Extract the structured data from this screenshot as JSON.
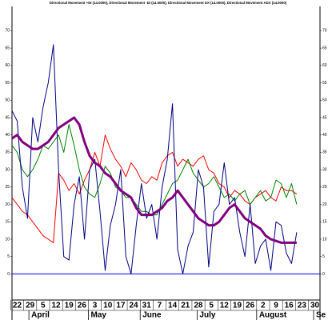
{
  "chart_data": {
    "type": "line",
    "title": "Directional Movement +DI (14.0000), Directional Movement -DI (14.0000), Directional Movement DX (14.0000), Directional Movement ADX (14.0000)",
    "x": [
      0,
      2,
      4,
      6,
      8,
      10,
      12,
      14,
      16,
      18,
      20,
      22,
      24,
      26,
      28,
      30,
      32,
      34,
      36,
      38,
      40,
      42,
      44,
      46,
      48,
      50,
      52,
      54,
      56,
      58,
      60,
      62,
      64,
      66,
      68,
      70,
      72,
      74,
      76,
      78,
      80,
      82,
      84,
      86,
      88,
      90,
      92,
      94,
      96,
      98,
      100,
      102,
      104,
      106,
      108,
      110
    ],
    "series": [
      {
        "color": "#ff0000",
        "width": 1,
        "values": [
          22,
          20,
          18,
          17,
          15,
          13,
          11,
          10,
          9,
          29,
          27,
          24,
          26,
          23,
          27,
          30,
          35,
          31,
          40,
          36,
          33,
          31,
          28,
          32,
          30,
          27,
          26,
          28,
          27,
          32,
          34,
          35,
          31,
          33,
          32,
          31,
          33,
          34,
          30,
          29,
          26,
          25,
          22,
          24,
          23,
          21,
          20,
          22,
          23,
          24,
          22,
          21,
          25,
          24,
          24,
          23
        ]
      },
      {
        "color": "#008000",
        "width": 1,
        "values": [
          37,
          35,
          30,
          28,
          30,
          33,
          37,
          36,
          38,
          40,
          35,
          43,
          37,
          30,
          25,
          23,
          22,
          26,
          31,
          29,
          25,
          24,
          22,
          22,
          20,
          18,
          18,
          17,
          17,
          20,
          23,
          26,
          27,
          30,
          33,
          29,
          27,
          25,
          26,
          28,
          25,
          22,
          23,
          21,
          23,
          24,
          20,
          22,
          24,
          21,
          22,
          27,
          26,
          22,
          26,
          20
        ]
      },
      {
        "color": "#000080",
        "width": 1,
        "values": [
          47,
          44,
          25,
          16,
          45,
          38,
          48,
          55,
          66,
          30,
          5,
          4,
          20,
          28,
          10,
          30,
          33,
          18,
          1,
          14,
          20,
          30,
          5,
          0,
          14,
          26,
          16,
          20,
          10,
          25,
          33,
          49,
          7,
          0,
          8,
          12,
          30,
          25,
          2,
          18,
          20,
          32,
          20,
          22,
          12,
          5,
          20,
          3,
          8,
          10,
          1,
          15,
          14,
          6,
          3,
          12
        ]
      },
      {
        "color": "#800080",
        "width": 3,
        "values": [
          39,
          40,
          38,
          37,
          36,
          36,
          37,
          38,
          40,
          42,
          43,
          44,
          45,
          43,
          38,
          34,
          32,
          31,
          29,
          28,
          26,
          24,
          23,
          22,
          19,
          17,
          17,
          17,
          18,
          19,
          21,
          22,
          24,
          22,
          20,
          18,
          16,
          15,
          14,
          14,
          15,
          17,
          19,
          20,
          18,
          16,
          15,
          14,
          13,
          11,
          10,
          9.5,
          9,
          9,
          9,
          9
        ]
      }
    ],
    "xlim": [
      0,
      119
    ],
    "xticks": [
      {
        "value": 2,
        "label": "22"
      },
      {
        "value": 7,
        "label": "29"
      },
      {
        "value": 12,
        "label": "5"
      },
      {
        "value": 17,
        "label": "12"
      },
      {
        "value": 22,
        "label": "19"
      },
      {
        "value": 27,
        "label": "26"
      },
      {
        "value": 32,
        "label": "3"
      },
      {
        "value": 37,
        "label": "10"
      },
      {
        "value": 42,
        "label": "17"
      },
      {
        "value": 47,
        "label": "24"
      },
      {
        "value": 52,
        "label": "31"
      },
      {
        "value": 57,
        "label": "7"
      },
      {
        "value": 62,
        "label": "14"
      },
      {
        "value": 67,
        "label": "21"
      },
      {
        "value": 72,
        "label": "28"
      },
      {
        "value": 77,
        "label": "5"
      },
      {
        "value": 82,
        "label": "12"
      },
      {
        "value": 87,
        "label": "19"
      },
      {
        "value": 92,
        "label": "26"
      },
      {
        "value": 97,
        "label": "2"
      },
      {
        "value": 102,
        "label": "9"
      },
      {
        "value": 107,
        "label": "16"
      },
      {
        "value": 112,
        "label": "23"
      },
      {
        "value": 117,
        "label": "30"
      }
    ],
    "xticks_major": [
      {
        "value": 9,
        "label": "April"
      },
      {
        "value": 32,
        "label": "May"
      },
      {
        "value": 52,
        "label": "June"
      },
      {
        "value": 74,
        "label": "July"
      },
      {
        "value": 97,
        "label": "August"
      },
      {
        "value": 119,
        "label": "Se"
      }
    ],
    "ylim": [
      -7.5,
      77
    ],
    "yticks": [
      0,
      5,
      10,
      15,
      20,
      25,
      30,
      35,
      40,
      45,
      50,
      55,
      60,
      65,
      70
    ],
    "zero_line_color": "#0000ff"
  }
}
